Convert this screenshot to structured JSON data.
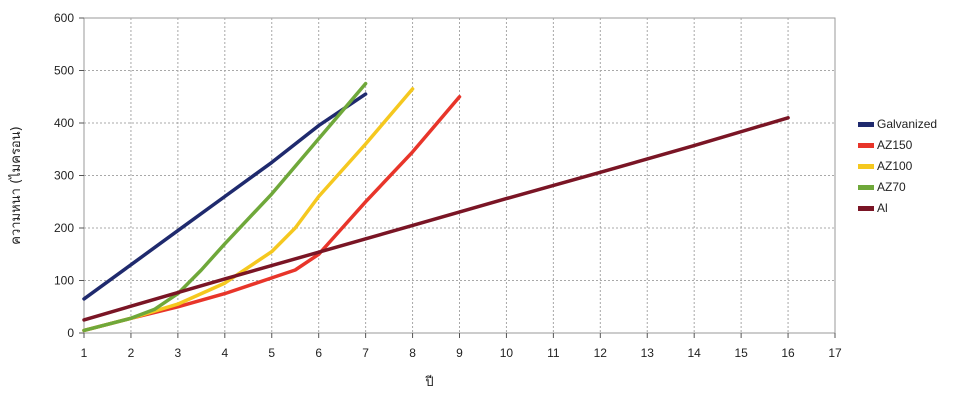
{
  "chart_data": {
    "type": "line",
    "title": "",
    "xlabel": "ปี",
    "ylabel": "ความหนา (ไมครอน)",
    "xlim": [
      1,
      17
    ],
    "ylim": [
      0,
      600
    ],
    "x_ticks": [
      "1",
      "2",
      "3",
      "4",
      "5",
      "6",
      "7",
      "8",
      "9",
      "10",
      "11",
      "12",
      "13",
      "14",
      "15",
      "16",
      "17"
    ],
    "y_ticks": [
      "0",
      "100",
      "200",
      "300",
      "400",
      "500",
      "600"
    ],
    "grid": true,
    "legend_position": "right",
    "series": [
      {
        "name": "Galvanized",
        "color": "#1f2a6e",
        "points": [
          [
            1,
            65
          ],
          [
            2,
            130
          ],
          [
            3,
            195
          ],
          [
            4,
            260
          ],
          [
            5,
            325
          ],
          [
            6,
            395
          ],
          [
            7,
            455
          ]
        ]
      },
      {
        "name": "AZ150",
        "color": "#e8352a",
        "points": [
          [
            1,
            5
          ],
          [
            2,
            28
          ],
          [
            3,
            50
          ],
          [
            4,
            75
          ],
          [
            5,
            105
          ],
          [
            5.5,
            120
          ],
          [
            6,
            150
          ],
          [
            6.5,
            200
          ],
          [
            7,
            250
          ],
          [
            8,
            345
          ],
          [
            9,
            450
          ]
        ]
      },
      {
        "name": "AZ100",
        "color": "#f5c81f",
        "points": [
          [
            1,
            5
          ],
          [
            2,
            28
          ],
          [
            3,
            55
          ],
          [
            4,
            95
          ],
          [
            5,
            155
          ],
          [
            5.5,
            200
          ],
          [
            6,
            260
          ],
          [
            7,
            360
          ],
          [
            8,
            465
          ]
        ]
      },
      {
        "name": "AZ70",
        "color": "#6fa83a",
        "points": [
          [
            1,
            5
          ],
          [
            2,
            28
          ],
          [
            2.5,
            45
          ],
          [
            3,
            75
          ],
          [
            3.5,
            120
          ],
          [
            4,
            170
          ],
          [
            5,
            265
          ],
          [
            6,
            370
          ],
          [
            7,
            475
          ]
        ]
      },
      {
        "name": "Al",
        "color": "#7a1525",
        "points": [
          [
            1,
            25
          ],
          [
            2,
            51
          ],
          [
            4,
            103
          ],
          [
            6,
            154
          ],
          [
            8,
            205
          ],
          [
            10,
            256
          ],
          [
            12,
            306
          ],
          [
            14,
            357
          ],
          [
            16,
            410
          ]
        ]
      }
    ]
  }
}
